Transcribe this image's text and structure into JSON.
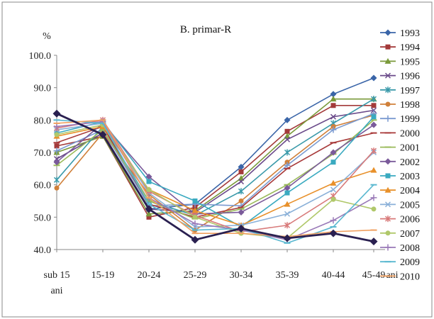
{
  "chart_data": {
    "type": "line",
    "title": "B. primar-R",
    "ylabel": "%",
    "xlabel_unit": "ani",
    "ylim": [
      40,
      100
    ],
    "yticks": [
      "40.0",
      "50.0",
      "60.0",
      "70.0",
      "80.0",
      "90.0",
      "100.0"
    ],
    "categories": [
      "sub 15 ani",
      "15-19",
      "20-24",
      "25-29",
      "30-34",
      "35-39",
      "40-44",
      "45-49"
    ],
    "grid": false,
    "legend_position": "right",
    "series": [
      {
        "name": "1993",
        "color": "#3a65a8",
        "marker": "diamond",
        "values": [
          82.0,
          75.5,
          52.5,
          54.0,
          65.5,
          80.0,
          88.0,
          93.0
        ]
      },
      {
        "name": "1994",
        "color": "#a33a3a",
        "marker": "square",
        "values": [
          72.0,
          75.0,
          50.0,
          53.0,
          64.0,
          76.5,
          84.5,
          84.5
        ]
      },
      {
        "name": "1995",
        "color": "#7a9a3a",
        "marker": "triangle",
        "values": [
          70.0,
          75.0,
          51.0,
          52.0,
          62.0,
          75.0,
          86.5,
          86.5
        ]
      },
      {
        "name": "1996",
        "color": "#6a4a8a",
        "marker": "x",
        "values": [
          68.0,
          76.0,
          52.5,
          51.5,
          61.0,
          74.0,
          81.0,
          83.0
        ]
      },
      {
        "name": "1997",
        "color": "#3a9aaa",
        "marker": "star",
        "values": [
          61.5,
          78.0,
          55.0,
          50.5,
          58.0,
          70.0,
          79.0,
          86.5
        ]
      },
      {
        "name": "1998",
        "color": "#d0803a",
        "marker": "circle",
        "values": [
          59.0,
          76.0,
          57.0,
          46.0,
          55.0,
          67.0,
          78.0,
          81.5
        ]
      },
      {
        "name": "1999",
        "color": "#7a9ad0",
        "marker": "plus",
        "values": [
          70.5,
          77.0,
          53.5,
          54.0,
          53.5,
          66.0,
          77.0,
          82.0
        ]
      },
      {
        "name": "2000",
        "color": "#a83a3a",
        "marker": "dash",
        "values": [
          73.0,
          78.0,
          54.0,
          50.0,
          53.0,
          65.0,
          73.0,
          76.0
        ]
      },
      {
        "name": "2001",
        "color": "#9aba5a",
        "marker": "dash",
        "values": [
          66.0,
          77.0,
          55.0,
          49.5,
          52.5,
          60.0,
          69.5,
          80.0
        ]
      },
      {
        "name": "2002",
        "color": "#7a5a9a",
        "marker": "diamond",
        "values": [
          67.0,
          79.0,
          62.5,
          51.0,
          51.5,
          59.0,
          70.0,
          78.5
        ]
      },
      {
        "name": "2003",
        "color": "#3aaac0",
        "marker": "square",
        "values": [
          76.0,
          79.5,
          61.0,
          55.0,
          47.0,
          57.5,
          67.0,
          81.0
        ]
      },
      {
        "name": "2004",
        "color": "#e8902a",
        "marker": "triangle",
        "values": [
          75.0,
          78.0,
          58.5,
          52.0,
          47.5,
          54.0,
          60.5,
          64.5
        ]
      },
      {
        "name": "2005",
        "color": "#8ab0d8",
        "marker": "x",
        "values": [
          77.0,
          79.0,
          57.5,
          47.0,
          47.5,
          51.0,
          58.5,
          70.0
        ]
      },
      {
        "name": "2006",
        "color": "#d87a7a",
        "marker": "star",
        "values": [
          77.5,
          80.0,
          58.0,
          50.5,
          45.5,
          47.5,
          56.5,
          70.5
        ]
      },
      {
        "name": "2007",
        "color": "#b0c86a",
        "marker": "circle",
        "values": [
          75.5,
          78.5,
          58.5,
          50.0,
          45.0,
          43.5,
          55.5,
          52.5
        ]
      },
      {
        "name": "2008",
        "color": "#9a7ab8",
        "marker": "plus",
        "values": [
          78.0,
          79.5,
          56.0,
          48.0,
          46.0,
          43.0,
          49.0,
          56.0
        ]
      },
      {
        "name": "2009",
        "color": "#5ab8d0",
        "marker": "dash",
        "values": [
          80.0,
          79.0,
          54.0,
          46.0,
          46.5,
          42.0,
          47.0,
          60.0
        ]
      },
      {
        "name": "2010",
        "color": "#f0a060",
        "marker": "dash",
        "values": [
          79.0,
          80.0,
          56.0,
          45.0,
          45.0,
          44.0,
          45.5,
          46.0
        ]
      },
      {
        "name": "",
        "color": "#2a2050",
        "marker": "diamond",
        "thick": true,
        "values": [
          82.0,
          75.5,
          52.5,
          43.0,
          46.5,
          43.5,
          45.0,
          42.5
        ]
      }
    ]
  }
}
